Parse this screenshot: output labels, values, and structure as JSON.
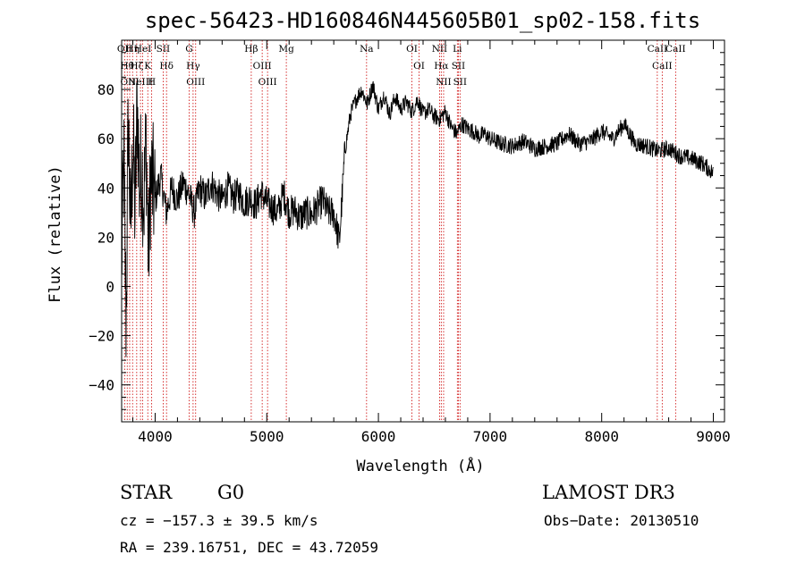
{
  "chart_data": {
    "type": "line",
    "title": "spec-56423-HD160846N445605B01_sp02-158.fits",
    "xlabel": "Wavelength (Å)",
    "ylabel": "Flux (relative)",
    "xlim": [
      3700,
      9100
    ],
    "ylim": [
      -55,
      100
    ],
    "x_ticks": [
      4000,
      5000,
      6000,
      7000,
      8000,
      9000
    ],
    "y_ticks": [
      -40,
      -20,
      0,
      20,
      40,
      60,
      80
    ],
    "grid": false,
    "series": [
      {
        "color": "#000000",
        "x": [
          3700,
          3720,
          3740,
          3760,
          3780,
          3800,
          3820,
          3840,
          3860,
          3880,
          3900,
          3920,
          3940,
          3960,
          3980,
          4000,
          4050,
          4100,
          4150,
          4200,
          4250,
          4300,
          4350,
          4400,
          4450,
          4500,
          4550,
          4600,
          4650,
          4700,
          4750,
          4800,
          4850,
          4900,
          4950,
          5000,
          5050,
          5100,
          5150,
          5200,
          5250,
          5300,
          5350,
          5400,
          5450,
          5500,
          5550,
          5600,
          5650,
          5700,
          5750,
          5800,
          5850,
          5900,
          5950,
          6000,
          6050,
          6100,
          6150,
          6200,
          6250,
          6300,
          6350,
          6400,
          6450,
          6500,
          6550,
          6600,
          6650,
          6700,
          6750,
          6800,
          6850,
          6900,
          6950,
          7000,
          7100,
          7200,
          7300,
          7400,
          7500,
          7600,
          7700,
          7800,
          7900,
          8000,
          8100,
          8200,
          8300,
          8400,
          8500,
          8600,
          8700,
          8800,
          8900,
          9000
        ],
        "y": [
          10,
          50,
          -15,
          70,
          20,
          60,
          30,
          75,
          40,
          50,
          35,
          60,
          10,
          45,
          40,
          35,
          45,
          30,
          40,
          35,
          42,
          38,
          30,
          40,
          36,
          42,
          38,
          35,
          40,
          36,
          38,
          34,
          36,
          33,
          38,
          34,
          32,
          30,
          38,
          30,
          31,
          28,
          30,
          29,
          32,
          35,
          30,
          30,
          18,
          55,
          70,
          76,
          80,
          74,
          82,
          72,
          78,
          70,
          77,
          72,
          75,
          71,
          76,
          70,
          72,
          69,
          68,
          71,
          65,
          62,
          66,
          64,
          63,
          61,
          62,
          60,
          58,
          57,
          59,
          56,
          57,
          58,
          62,
          58,
          59,
          63,
          60,
          66,
          58,
          57,
          55,
          56,
          53,
          52,
          50,
          46
        ]
      }
    ],
    "line_markers": [
      {
        "wavelength": 3727,
        "label": "OII"
      },
      {
        "wavelength": 3750,
        "label": "Hθ"
      },
      {
        "wavelength": 3772,
        "label": "OIII"
      },
      {
        "wavelength": 3798,
        "label": "Hη"
      },
      {
        "wavelength": 3835,
        "label": "Hζ"
      },
      {
        "wavelength": 3869,
        "label": "NeIII"
      },
      {
        "wavelength": 3889,
        "label": "HeI"
      },
      {
        "wavelength": 3934,
        "label": "K"
      },
      {
        "wavelength": 3969,
        "label": "H"
      },
      {
        "wavelength": 4072,
        "label": "SII"
      },
      {
        "wavelength": 4102,
        "label": "Hδ"
      },
      {
        "wavelength": 4304,
        "label": "G"
      },
      {
        "wavelength": 4340,
        "label": "Hγ"
      },
      {
        "wavelength": 4363,
        "label": "OIII"
      },
      {
        "wavelength": 4861,
        "label": "Hβ"
      },
      {
        "wavelength": 4959,
        "label": "OIII"
      },
      {
        "wavelength": 5007,
        "label": "OIII"
      },
      {
        "wavelength": 5175,
        "label": "Mg"
      },
      {
        "wavelength": 5894,
        "label": "Na"
      },
      {
        "wavelength": 6300,
        "label": "OI"
      },
      {
        "wavelength": 6364,
        "label": "OI"
      },
      {
        "wavelength": 6548,
        "label": "NII"
      },
      {
        "wavelength": 6563,
        "label": "Hα"
      },
      {
        "wavelength": 6584,
        "label": "NII"
      },
      {
        "wavelength": 6707,
        "label": "Li"
      },
      {
        "wavelength": 6716,
        "label": "SII"
      },
      {
        "wavelength": 6731,
        "label": "SII"
      },
      {
        "wavelength": 8498,
        "label": "CaII"
      },
      {
        "wavelength": 8542,
        "label": "CaII"
      },
      {
        "wavelength": 8662,
        "label": "CaII"
      }
    ]
  },
  "info": {
    "class": "STAR",
    "subclass": "G0",
    "survey": "LAMOST DR3",
    "cz": "cz = −157.3 ± 39.5 km/s",
    "obs_date": "Obs−Date: 20130510",
    "coords": "RA = 239.16751, DEC =  43.72059"
  }
}
